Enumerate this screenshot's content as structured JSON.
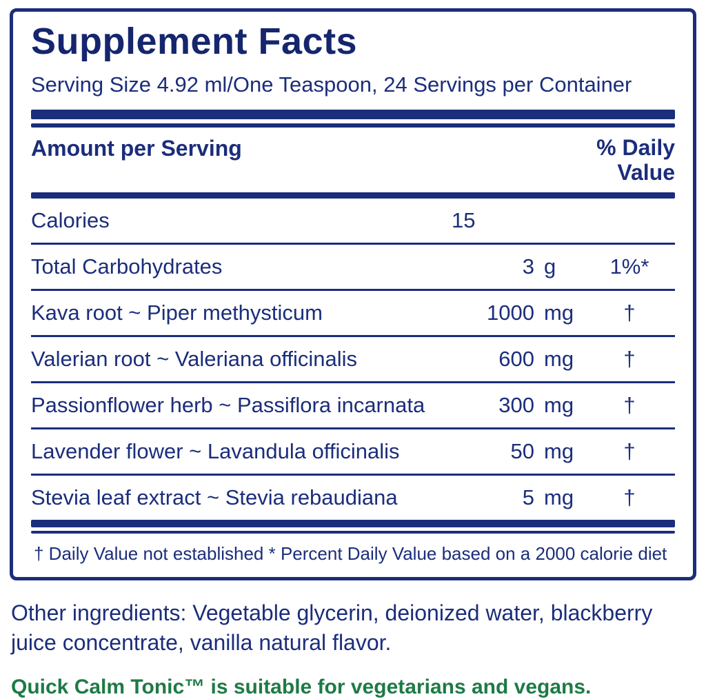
{
  "colors": {
    "navy": "#1b2d7b",
    "title_navy": "#15266e",
    "green": "#1e7a46"
  },
  "panel": {
    "title": "Supplement Facts",
    "serving_line": "Serving Size 4.92 ml/One Teaspoon, 24 Servings per Container",
    "columns": {
      "amount": "Amount per Serving",
      "dv_line1": "% Daily",
      "dv_line2": "Value"
    },
    "rows": [
      {
        "name": "Calories",
        "amount": "15",
        "unit": "",
        "dv": ""
      },
      {
        "name": "Total Carbohydrates",
        "amount": "3",
        "unit": "g",
        "dv": "1%*"
      },
      {
        "name": "Kava root ~ Piper methysticum",
        "amount": "1000",
        "unit": "mg",
        "dv": "†"
      },
      {
        "name": "Valerian root ~ Valeriana officinalis",
        "amount": "600",
        "unit": "mg",
        "dv": "†"
      },
      {
        "name": "Passionflower herb ~ Passiflora incarnata",
        "amount": "300",
        "unit": "mg",
        "dv": "†"
      },
      {
        "name": "Lavender flower ~ Lavandula officinalis",
        "amount": "50",
        "unit": "mg",
        "dv": "†"
      },
      {
        "name": "Stevia leaf extract ~ Stevia rebaudiana",
        "amount": "5",
        "unit": "mg",
        "dv": "†"
      }
    ],
    "footnote": "†  Daily Value not established   * Percent Daily Value based on a 2000 calorie diet"
  },
  "other_ingredients": "Other ingredients: Vegetable glycerin, deionized water, blackberry juice concentrate, vanilla natural flavor.",
  "vegan_note": "Quick Calm Tonic™ is suitable for vegetarians and vegans."
}
